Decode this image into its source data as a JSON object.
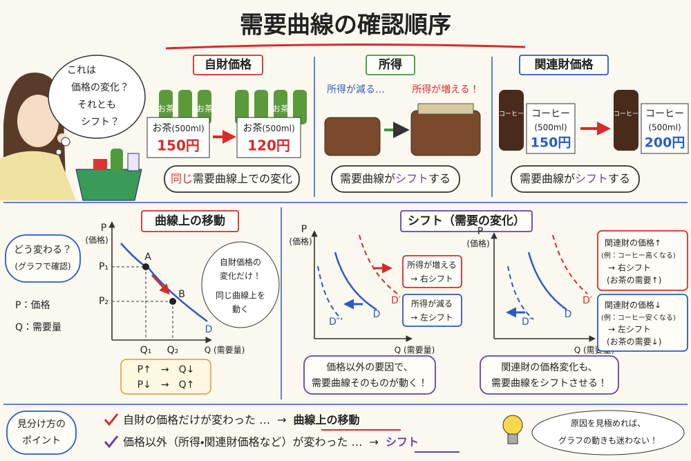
{
  "header": {
    "title": "需要曲線の確認順序"
  },
  "thought_bubble": {
    "lines": [
      "これは",
      "価格の変化？",
      "それとも",
      "シフト？"
    ]
  },
  "panels": [
    {
      "title": "自財価格",
      "bottle_label": "お茶",
      "sign_before": {
        "name": "お茶",
        "size": "(500ml)",
        "price": "150円"
      },
      "sign_after": {
        "name": "お茶",
        "size": "(500ml)",
        "price": "120円"
      },
      "caption": [
        "同じ",
        "需要曲線上での変化"
      ]
    },
    {
      "title": "所得",
      "before": "所得が減る…",
      "after": "所得が増える！",
      "caption": [
        "需要曲線が",
        "シフト",
        "する"
      ]
    },
    {
      "title": "関連財価格",
      "bottle_label": "コーヒー",
      "sign_before": {
        "name": "コーヒー",
        "size": "(500ml)",
        "price": "150円"
      },
      "sign_after": {
        "name": "コーヒー",
        "size": "(500ml)",
        "price": "200円"
      },
      "caption": [
        "需要曲線が",
        "シフト",
        "する"
      ]
    }
  ],
  "legend": {
    "question": [
      "どう変わる？",
      "(グラフで確認)"
    ],
    "p": "P：価格",
    "q": "Q：需要量"
  },
  "graph_move": {
    "title": "曲線上の移動",
    "y_axis": [
      "P",
      "(価格)"
    ],
    "x_axis": "Q (需要量)",
    "p1": "P₁",
    "p2": "P₂",
    "q1": "Q₁",
    "q2": "Q₂",
    "a": "A",
    "b": "B",
    "curve": "D",
    "bubble": [
      "自財価格の",
      "変化だけ！",
      "同じ曲線上を",
      "動く"
    ],
    "table": [
      "P↑　→　Q↓",
      "P↓　→　Q↑"
    ]
  },
  "graph_shift": {
    "title": "シフト（需要の変化）",
    "y_axis": [
      "P",
      "(価格)"
    ],
    "x_axis": "Q (需要量)",
    "d": "D",
    "d_right": "D′",
    "d_left": "D″",
    "income_up": [
      "所得が増える",
      "→ 右シフト"
    ],
    "income_down": [
      "所得が減る",
      "→ 左シフト"
    ],
    "note": [
      "価格以外の要因で、",
      "需要曲線そのものが動く！"
    ]
  },
  "graph_related": {
    "y_axis": [
      "P",
      "(価格)"
    ],
    "x_axis": "Q (需要量)",
    "d": "D",
    "d_right": "D′",
    "d_left": "D″",
    "up": [
      "関連財の価格↑",
      "(例：コーヒー高くなる)",
      "→ 右シフト",
      "(お茶の需要↑)"
    ],
    "down": [
      "関連財の価格↓",
      "(例：コーヒー安くなる)",
      "→ 左シフト",
      "(お茶の需要↓)"
    ],
    "note": [
      "関連財の価格変化も、",
      "需要曲線をシフトさせる！"
    ]
  },
  "points": {
    "heading": [
      "見分け方の",
      "ポイント"
    ],
    "rows": [
      [
        "自財の価格だけが変わった …",
        "→",
        "曲線上の移動"
      ],
      [
        "価格以外（所得・関連財価格など）が変わった …",
        "→",
        "シフト"
      ]
    ],
    "bubble": [
      "原因を見極めれば、",
      "グラフの動きも迷わない！"
    ]
  }
}
